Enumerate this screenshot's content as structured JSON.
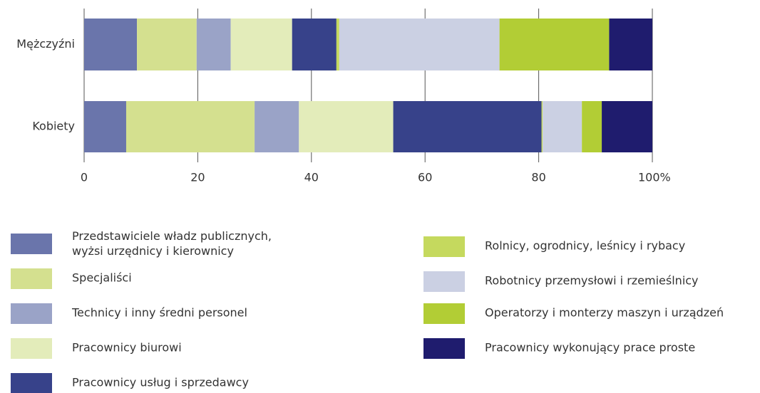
{
  "chart_data": {
    "type": "stacked_barh",
    "categories": [
      "Mężczyźni",
      "Kobiety"
    ],
    "series": [
      {
        "name": "Przedstawiciele władz publicznych,\nwyżsi urzędnicy i kierownicy",
        "color": "#6a75ab",
        "values": [
          9.3,
          7.4
        ]
      },
      {
        "name": "Specjaliści",
        "color": "#d4e08f",
        "values": [
          10.5,
          22.6
        ]
      },
      {
        "name": "Technicy i inny średni personel",
        "color": "#9aa3c7",
        "values": [
          6.0,
          7.8
        ]
      },
      {
        "name": "Pracownicy biurowi",
        "color": "#e3ecba",
        "values": [
          10.8,
          16.6
        ]
      },
      {
        "name": "Pracownicy usług i sprzedawcy",
        "color": "#37428a",
        "values": [
          7.8,
          26.1
        ]
      },
      {
        "name": "Rolnicy, ogrodnicy, leśnicy i rybacy",
        "color": "#c5d95e",
        "values": [
          0.5,
          0.2
        ]
      },
      {
        "name": "Robotnicy przemysłowi i rzemieślnicy",
        "color": "#cbd0e3",
        "values": [
          28.2,
          6.9
        ]
      },
      {
        "name": "Operatorzy i monterzy maszyn i urządzeń",
        "color": "#b2cd35",
        "values": [
          19.3,
          3.5
        ]
      },
      {
        "name": "Pracownicy wykonujący prace proste",
        "color": "#1f1c6e",
        "values": [
          7.6,
          8.9
        ]
      }
    ],
    "xlim": [
      0,
      100
    ],
    "xticks": [
      0,
      20,
      40,
      60,
      80,
      {
        "value": 100,
        "label": "100%"
      }
    ],
    "grid": true
  }
}
